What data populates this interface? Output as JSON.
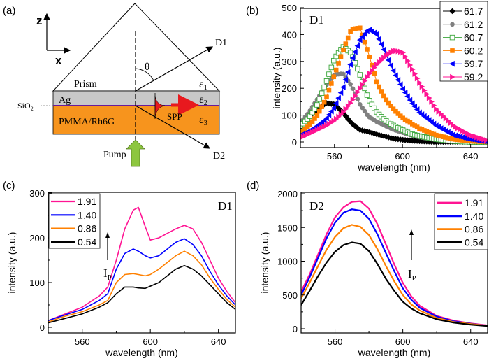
{
  "panels": {
    "a": "(a)",
    "b": "(b)",
    "c": "(c)",
    "d": "(d)"
  },
  "diagram": {
    "axis_z": "z",
    "axis_x": "x",
    "prism": "Prism",
    "theta": "θ",
    "d1": "D1",
    "d2": "D2",
    "eps1": "ε",
    "eps1_sub": "1",
    "eps2": "ε",
    "eps2_sub": "2",
    "eps3": "ε",
    "eps3_sub": "3",
    "ag": "Ag",
    "sio2": "SiO",
    "sio2_sub": "2",
    "pmma": "PMMA/Rh6G",
    "spp": "SPP",
    "pump": "Pump",
    "colors": {
      "ag": "#c8c8c8",
      "pmma": "#f7941d",
      "sio2": "#6a1b9a",
      "spp": "#e8191e",
      "pump": "#8dc63f"
    }
  },
  "chart_data": [
    {
      "type": "line",
      "panel": "b",
      "annotation": "D1",
      "xlabel": "wavelength (nm)",
      "ylabel": "intensity (a.u.)",
      "xlim": [
        540,
        650
      ],
      "ylim": [
        0,
        500
      ],
      "xticks": [
        560,
        600,
        640
      ],
      "yticks": [
        0,
        100,
        200,
        300,
        400,
        500
      ],
      "legend": "top-right",
      "x": [
        540,
        545,
        550,
        555,
        560,
        565,
        570,
        575,
        580,
        585,
        590,
        595,
        600,
        605,
        610,
        620,
        630,
        640,
        650
      ],
      "series": [
        {
          "name": "61.7",
          "color": "#000000",
          "marker": "diamond",
          "values": [
            70,
            95,
            120,
            145,
            140,
            110,
            70,
            45,
            38,
            28,
            20,
            12,
            8,
            5,
            3,
            0,
            0,
            0,
            0
          ]
        },
        {
          "name": "61.2",
          "color": "#808080",
          "marker": "circle",
          "values": [
            70,
            110,
            160,
            210,
            250,
            255,
            210,
            140,
            95,
            75,
            60,
            45,
            35,
            25,
            18,
            8,
            3,
            0,
            0
          ]
        },
        {
          "name": "60.7",
          "color": "#3aa63a",
          "marker": "open-square",
          "values": [
            60,
            90,
            140,
            220,
            310,
            355,
            330,
            250,
            160,
            110,
            80,
            60,
            45,
            30,
            22,
            10,
            3,
            0,
            0
          ]
        },
        {
          "name": "60.2",
          "color": "#ff8000",
          "marker": "square",
          "values": [
            35,
            60,
            100,
            160,
            250,
            340,
            420,
            425,
            330,
            220,
            160,
            120,
            90,
            70,
            50,
            25,
            10,
            3,
            0
          ]
        },
        {
          "name": "59.7",
          "color": "#0000ff",
          "marker": "left-triangle",
          "values": [
            25,
            40,
            60,
            85,
            130,
            200,
            300,
            380,
            420,
            400,
            330,
            260,
            200,
            150,
            110,
            60,
            25,
            10,
            0
          ]
        },
        {
          "name": "59.2",
          "color": "#ff1493",
          "marker": "right-triangle",
          "values": [
            15,
            30,
            45,
            60,
            80,
            110,
            150,
            200,
            250,
            290,
            320,
            340,
            335,
            280,
            220,
            120,
            60,
            25,
            5
          ]
        }
      ]
    },
    {
      "type": "line",
      "panel": "c",
      "annotation": "D1",
      "arrow_label": "I",
      "arrow_label_sub": "P",
      "xlabel": "wavelength (nm)",
      "ylabel": "intensity (a.u.)",
      "xlim": [
        540,
        650
      ],
      "ylim": [
        0,
        300
      ],
      "xticks": [
        560,
        600,
        640
      ],
      "yticks": [
        0,
        100,
        200,
        300
      ],
      "legend": "top-left",
      "x": [
        540,
        550,
        560,
        570,
        575,
        580,
        585,
        590,
        593,
        597,
        600,
        605,
        610,
        615,
        620,
        625,
        630,
        635,
        640,
        645,
        650
      ],
      "series": [
        {
          "name": "1.91",
          "color": "#ff1493",
          "values": [
            15,
            30,
            45,
            70,
            90,
            150,
            220,
            262,
            268,
            225,
            195,
            200,
            210,
            220,
            228,
            220,
            190,
            150,
            110,
            80,
            55
          ]
        },
        {
          "name": "1.40",
          "color": "#0000ff",
          "values": [
            15,
            28,
            40,
            60,
            75,
            130,
            165,
            175,
            170,
            160,
            155,
            160,
            175,
            190,
            198,
            185,
            160,
            125,
            95,
            70,
            50
          ]
        },
        {
          "name": "0.86",
          "color": "#ff8000",
          "values": [
            12,
            25,
            35,
            50,
            60,
            100,
            118,
            120,
            118,
            115,
            118,
            130,
            145,
            160,
            170,
            160,
            140,
            110,
            85,
            62,
            45
          ]
        },
        {
          "name": "0.54",
          "color": "#000000",
          "values": [
            10,
            20,
            30,
            45,
            55,
            75,
            90,
            90,
            88,
            87,
            92,
            100,
            115,
            130,
            138,
            130,
            115,
            95,
            75,
            55,
            40
          ]
        }
      ]
    },
    {
      "type": "line",
      "panel": "d",
      "annotation": "D2",
      "arrow_label": "I",
      "arrow_label_sub": "P",
      "xlabel": "wavelength (nm)",
      "ylabel": "intensity (a.u.)",
      "xlim": [
        540,
        650
      ],
      "ylim": [
        0,
        2000
      ],
      "xticks": [
        560,
        600,
        640
      ],
      "yticks": [
        0,
        500,
        1000,
        1500,
        2000
      ],
      "legend": "top-right",
      "x": [
        540,
        545,
        550,
        555,
        560,
        565,
        570,
        575,
        580,
        585,
        590,
        595,
        600,
        605,
        610,
        620,
        630,
        640,
        650
      ],
      "series": [
        {
          "name": "1.91",
          "color": "#ff1493",
          "values": [
            550,
            800,
            1100,
            1400,
            1650,
            1800,
            1880,
            1890,
            1780,
            1550,
            1250,
            950,
            680,
            480,
            340,
            190,
            120,
            80,
            50
          ]
        },
        {
          "name": "1.40",
          "color": "#0000ff",
          "values": [
            500,
            760,
            1050,
            1340,
            1570,
            1720,
            1770,
            1750,
            1630,
            1400,
            1120,
            850,
            600,
            430,
            310,
            180,
            110,
            75,
            45
          ]
        },
        {
          "name": "0.86",
          "color": "#ff8000",
          "values": [
            450,
            680,
            930,
            1170,
            1360,
            1490,
            1540,
            1510,
            1390,
            1180,
            930,
            700,
            500,
            360,
            270,
            160,
            100,
            70,
            45
          ]
        },
        {
          "name": "0.54",
          "color": "#000000",
          "values": [
            350,
            560,
            780,
            980,
            1140,
            1240,
            1280,
            1260,
            1150,
            960,
            740,
            560,
            400,
            300,
            230,
            140,
            90,
            60,
            40
          ]
        }
      ]
    }
  ]
}
